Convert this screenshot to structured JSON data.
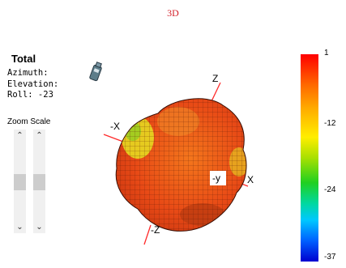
{
  "header": {
    "title": "3D"
  },
  "panel": {
    "title": "Total",
    "azimuth": "Azimuth:",
    "elevation": "Elevation:",
    "roll": "Roll: -23",
    "zoom_label": "Zoom Scale"
  },
  "axes": {
    "z": "Z",
    "neg_x": "-X",
    "neg_y": "-y",
    "x": "X",
    "neg_z": "-Z"
  },
  "colorbar": {
    "ticks": [
      "1",
      "-12",
      "-24",
      "-37"
    ],
    "colors": [
      "#ff0000",
      "#ffee00",
      "#20d020",
      "#00c8ff",
      "#0000d0"
    ]
  },
  "colors": {
    "title": "#d4202a",
    "surface_main": "#e8501a",
    "surface_highlight": "#e6e020"
  }
}
